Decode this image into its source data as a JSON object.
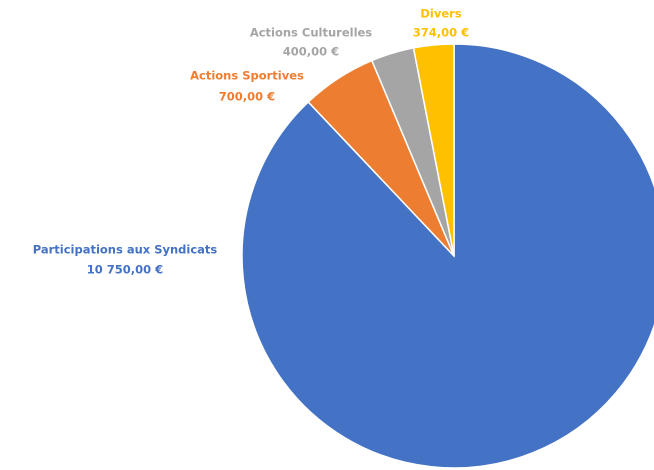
{
  "chart_data": {
    "type": "pie",
    "categories": [
      "Participations aux Syndicats",
      "Actions Sportives",
      "Actions Culturelles",
      "Divers"
    ],
    "values": [
      10750,
      700,
      400,
      374
    ],
    "value_labels": [
      "10 750,00 €",
      "700,00 €",
      "400,00 €",
      "374,00 €"
    ],
    "colors": [
      "#4472c4",
      "#ed7d31",
      "#a5a5a5",
      "#ffc000"
    ]
  }
}
